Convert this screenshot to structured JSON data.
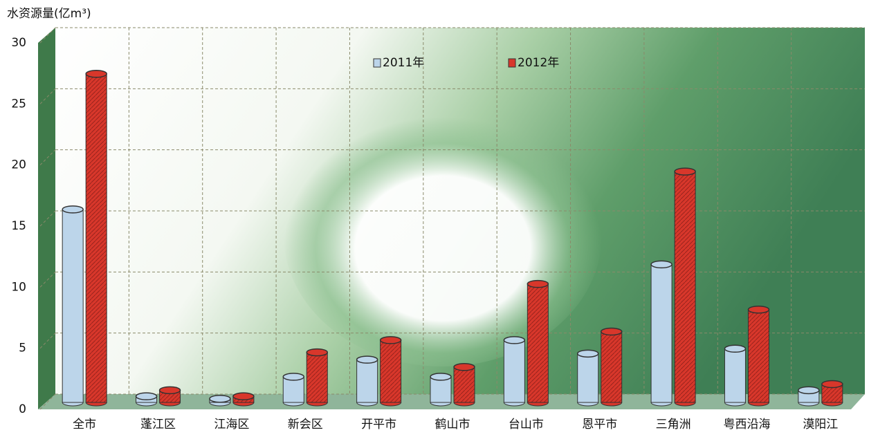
{
  "chart_data": {
    "type": "bar",
    "title": "水资源量(亿m³)",
    "categories": [
      "全市",
      "蓬江区",
      "江海区",
      "新会区",
      "开平市",
      "鹤山市",
      "台山市",
      "恩平市",
      "三角洲",
      "粤西沿海",
      "漠阳江"
    ],
    "series": [
      {
        "name": "2011年",
        "color": "#bcd5ea",
        "values": [
          15.8,
          0.5,
          0.3,
          2.1,
          3.5,
          2.1,
          5.1,
          4.0,
          11.3,
          4.4,
          1.0
        ]
      },
      {
        "name": "2012年",
        "color": "#d8372b",
        "values": [
          26.9,
          1.0,
          0.5,
          4.1,
          5.1,
          2.9,
          9.7,
          5.8,
          18.9,
          7.6,
          1.5
        ]
      }
    ],
    "ylim": [
      0,
      30
    ],
    "yticks": [
      0,
      5,
      10,
      15,
      20,
      25,
      30
    ],
    "grid": true
  }
}
